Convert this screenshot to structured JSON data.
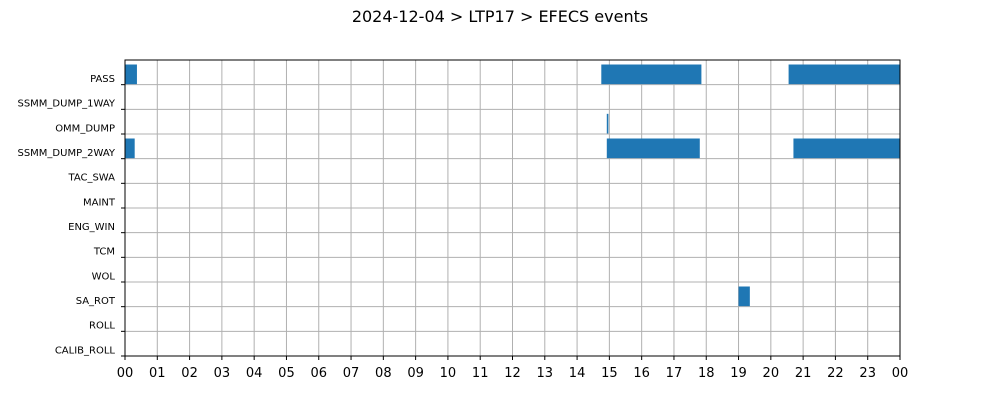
{
  "chart_data": {
    "type": "bar",
    "orientation": "horizontal-timeline",
    "title": "2024-12-04 > LTP17 > EFECS events",
    "xlabel": "",
    "ylabel": "",
    "xlim": [
      0,
      24
    ],
    "x_ticks": [
      "00",
      "01",
      "02",
      "03",
      "04",
      "05",
      "06",
      "07",
      "08",
      "09",
      "10",
      "11",
      "12",
      "13",
      "14",
      "15",
      "16",
      "17",
      "18",
      "19",
      "20",
      "21",
      "22",
      "23",
      "00"
    ],
    "grid": true,
    "legend": "none",
    "bar_color": "#1f77b4",
    "categories": [
      "PASS",
      "SSMM_DUMP_1WAY",
      "OMM_DUMP",
      "SSMM_DUMP_2WAY",
      "TAC_SWA",
      "MAINT",
      "ENG_WIN",
      "TCM",
      "WOL",
      "SA_ROT",
      "ROLL",
      "CALIB_ROLL"
    ],
    "series": [
      {
        "category": "PASS",
        "intervals": [
          [
            0.0,
            0.37
          ],
          [
            14.75,
            17.85
          ],
          [
            20.55,
            24.0
          ]
        ]
      },
      {
        "category": "SSMM_DUMP_1WAY",
        "intervals": []
      },
      {
        "category": "OMM_DUMP",
        "intervals": [
          [
            14.92,
            14.97
          ]
        ]
      },
      {
        "category": "SSMM_DUMP_2WAY",
        "intervals": [
          [
            0.0,
            0.3
          ],
          [
            14.92,
            17.8
          ],
          [
            20.7,
            24.0
          ]
        ]
      },
      {
        "category": "TAC_SWA",
        "intervals": []
      },
      {
        "category": "MAINT",
        "intervals": []
      },
      {
        "category": "ENG_WIN",
        "intervals": []
      },
      {
        "category": "TCM",
        "intervals": []
      },
      {
        "category": "WOL",
        "intervals": []
      },
      {
        "category": "SA_ROT",
        "intervals": [
          [
            19.0,
            19.35
          ]
        ]
      },
      {
        "category": "ROLL",
        "intervals": []
      },
      {
        "category": "CALIB_ROLL",
        "intervals": []
      }
    ]
  }
}
